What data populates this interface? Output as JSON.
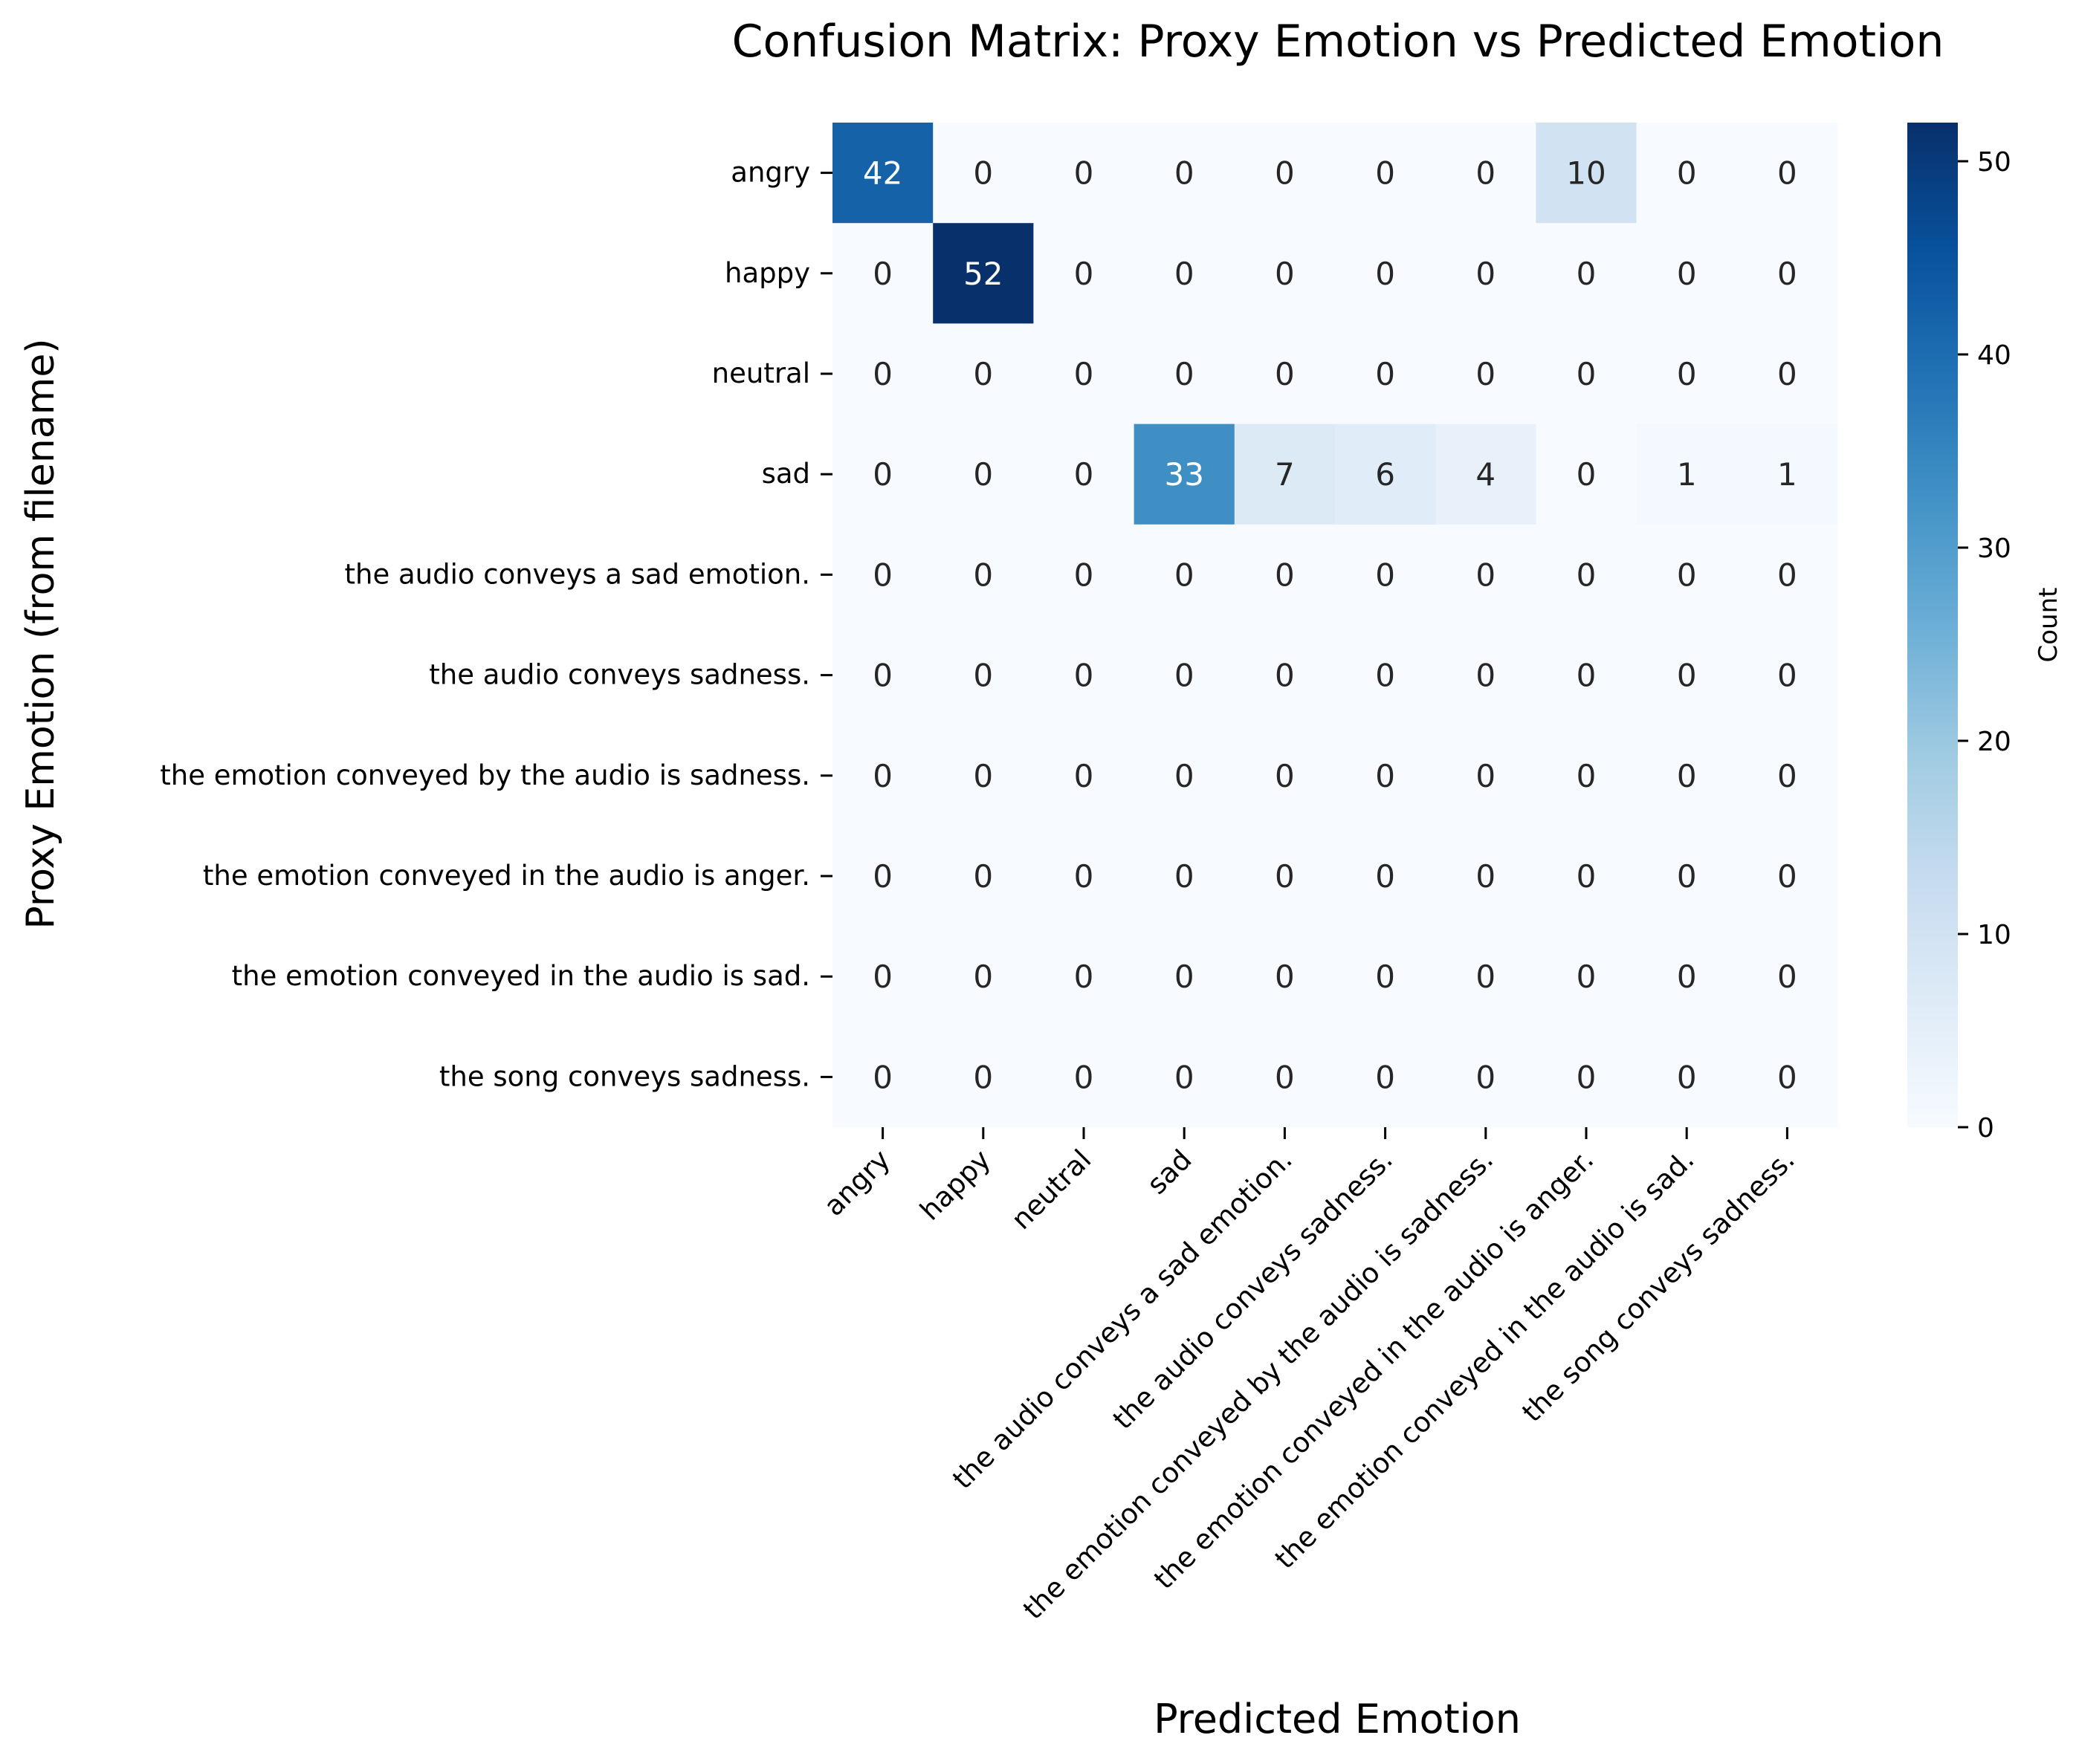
{
  "chart_data": {
    "type": "heatmap",
    "title": "Confusion Matrix: Proxy Emotion vs Predicted Emotion",
    "xlabel": "Predicted Emotion",
    "ylabel": "Proxy Emotion (from filename)",
    "row_labels": [
      "angry",
      "happy",
      "neutral",
      "sad",
      "the audio conveys a sad emotion.",
      "the audio conveys sadness.",
      "the emotion conveyed by the audio is sadness.",
      "the emotion conveyed in the audio is anger.",
      "the emotion conveyed in the audio is sad.",
      "the song conveys sadness."
    ],
    "col_labels": [
      "angry",
      "happy",
      "neutral",
      "sad",
      "the audio conveys a sad emotion.",
      "the audio conveys sadness.",
      "the emotion conveyed by the audio is sadness.",
      "the emotion conveyed in the audio is anger.",
      "the emotion conveyed in the audio is sad.",
      "the song conveys sadness."
    ],
    "values": [
      [
        42,
        0,
        0,
        0,
        0,
        0,
        0,
        10,
        0,
        0
      ],
      [
        0,
        52,
        0,
        0,
        0,
        0,
        0,
        0,
        0,
        0
      ],
      [
        0,
        0,
        0,
        0,
        0,
        0,
        0,
        0,
        0,
        0
      ],
      [
        0,
        0,
        0,
        33,
        7,
        6,
        4,
        0,
        1,
        1
      ],
      [
        0,
        0,
        0,
        0,
        0,
        0,
        0,
        0,
        0,
        0
      ],
      [
        0,
        0,
        0,
        0,
        0,
        0,
        0,
        0,
        0,
        0
      ],
      [
        0,
        0,
        0,
        0,
        0,
        0,
        0,
        0,
        0,
        0
      ],
      [
        0,
        0,
        0,
        0,
        0,
        0,
        0,
        0,
        0,
        0
      ],
      [
        0,
        0,
        0,
        0,
        0,
        0,
        0,
        0,
        0,
        0
      ],
      [
        0,
        0,
        0,
        0,
        0,
        0,
        0,
        0,
        0,
        0
      ]
    ],
    "colorbar": {
      "label": "Count",
      "range": [
        0,
        52
      ],
      "ticks": [
        0,
        10,
        20,
        30,
        40,
        50
      ]
    },
    "colormap": "Blues",
    "colors": [
      "#f7fbff",
      "#deebf7",
      "#c6dbef",
      "#9ecae1",
      "#6baed6",
      "#4292c6",
      "#2171b5",
      "#08519c",
      "#08306b"
    ],
    "annotations": true,
    "grid": false
  }
}
